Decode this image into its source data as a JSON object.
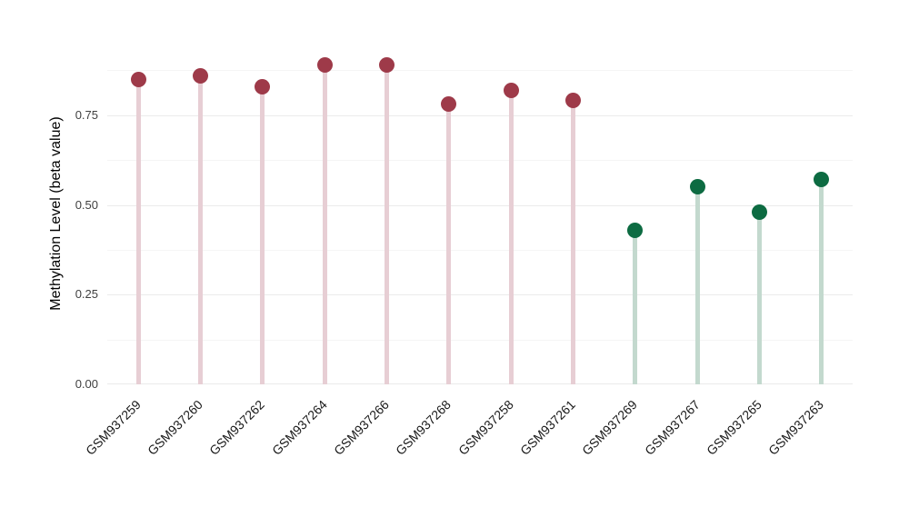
{
  "chart_data": {
    "type": "bar",
    "subtype": "lollipop",
    "title": "",
    "xlabel": "",
    "ylabel": "Methylation Level (beta value)",
    "ylim": [
      0,
      1.0
    ],
    "yticks": [
      0,
      0.25,
      0.5,
      0.75
    ],
    "ytick_labels": [
      "0.00",
      "0.25",
      "0.50",
      "0.75"
    ],
    "minor_ticks": [
      0.125,
      0.375,
      0.625,
      0.875
    ],
    "grid": "horizontal",
    "legend_position": "none",
    "categories": [
      "GSM937259",
      "GSM937260",
      "GSM937262",
      "GSM937264",
      "GSM937266",
      "GSM937268",
      "GSM937258",
      "GSM937261",
      "GSM937269",
      "GSM937267",
      "GSM937265",
      "GSM937263"
    ],
    "values": [
      0.85,
      0.86,
      0.83,
      0.89,
      0.89,
      0.78,
      0.82,
      0.79,
      0.43,
      0.55,
      0.48,
      0.57
    ],
    "groups": [
      "red",
      "red",
      "red",
      "red",
      "red",
      "red",
      "red",
      "red",
      "green",
      "green",
      "green",
      "green"
    ],
    "colors": {
      "red_dot": "#9e3a49",
      "red_stem": "#e7ced4",
      "green_dot": "#0d6b42",
      "green_stem": "#c3d9ce",
      "grid_major": "#ebebeb",
      "grid_minor": "#f5f5f5",
      "axis_text": "#404040",
      "background": "#ffffff"
    }
  }
}
